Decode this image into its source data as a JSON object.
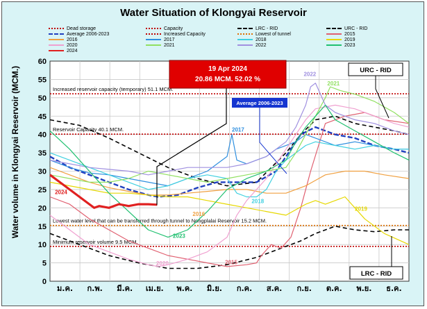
{
  "chart_data": {
    "type": "line",
    "title": "Water Situation of Klongyai Reservoir",
    "ylabel": "Water volume in Klongyai Reservoir (MCM.)",
    "xlabel": "",
    "ylim": [
      0,
      60
    ],
    "yticks": [
      0,
      5,
      10,
      15,
      20,
      25,
      30,
      35,
      40,
      45,
      50,
      55,
      60
    ],
    "xlim": [
      0,
      365
    ],
    "months": [
      "ม.ค.",
      "ก.พ.",
      "มี.ค.",
      "เม.ย.",
      "พ.ค.",
      "มิ.ย.",
      "ก.ค.",
      "ส.ค.",
      "ก.ย.",
      "ต.ค.",
      "พ.ย.",
      "ธ.ค."
    ],
    "grid": true,
    "legend_position": "top",
    "callout": {
      "line1": "19 Apr 2024",
      "line2": "20.86 MCM. 52.02 %"
    },
    "box_labels": {
      "urc": "URC - RID",
      "lrc": "LRC - RID"
    },
    "reference_lines": [
      {
        "name": "Increased reservoir capacity (temporary) 51.1 MCM.",
        "y": 51.1,
        "color": "#c00000"
      },
      {
        "name": "Reservoir Capacity 40.1 MCM.",
        "y": 40.1,
        "color": "#c00000"
      },
      {
        "name": "Lowest water level that can be transferred through tunnel to Nongplalai Reservoir 15.2 MCM.",
        "y": 15.2,
        "color": "#e07000"
      },
      {
        "name": "Minimum reservoir volume 9.5 MCM.",
        "y": 9.5,
        "color": "#c00000"
      }
    ],
    "legend": [
      {
        "label": "Dead storage",
        "color": "#c00000",
        "style": "dotted"
      },
      {
        "label": "Capacity",
        "color": "#c00000",
        "style": "dotted"
      },
      {
        "label": "LRC - RID",
        "color": "#000000",
        "style": "dashed"
      },
      {
        "label": "URC - RID",
        "color": "#000000",
        "style": "dashed"
      },
      {
        "label": "Average 2006-2023",
        "color": "#1f3fbf",
        "style": "dashed"
      },
      {
        "label": "Increased Capacity",
        "color": "#c00000",
        "style": "dotted"
      },
      {
        "label": "Lowest of tunnel",
        "color": "#e07000",
        "style": "dotted"
      },
      {
        "label": "2015",
        "color": "#e06070",
        "style": "solid"
      },
      {
        "label": "2016",
        "color": "#f0a040",
        "style": "solid"
      },
      {
        "label": "2017",
        "color": "#2f8fdf",
        "style": "solid"
      },
      {
        "label": "2018",
        "color": "#40d0e0",
        "style": "solid"
      },
      {
        "label": "2019",
        "color": "#e6d800",
        "style": "solid"
      },
      {
        "label": "2020",
        "color": "#f0a0d0",
        "style": "solid"
      },
      {
        "label": "2021",
        "color": "#90e060",
        "style": "solid"
      },
      {
        "label": "2022",
        "color": "#a090e0",
        "style": "solid"
      },
      {
        "label": "2023",
        "color": "#20c070",
        "style": "solid"
      },
      {
        "label": "2024",
        "color": "#e02020",
        "style": "solid"
      }
    ],
    "series_labels": [
      {
        "text": "2024",
        "x": 5,
        "y": 23.8,
        "color": "#e02020"
      },
      {
        "text": "2016",
        "x": 145,
        "y": 17.8,
        "color": "#f0a040"
      },
      {
        "text": "2017",
        "x": 185,
        "y": 40.8,
        "color": "#2f8fdf"
      },
      {
        "text": "2018",
        "x": 205,
        "y": 21.3,
        "color": "#40d0e0"
      },
      {
        "text": "2019",
        "x": 310,
        "y": 19.2,
        "color": "#e6d800"
      },
      {
        "text": "2020",
        "x": 108,
        "y": 4.4,
        "color": "#f0a0d0"
      },
      {
        "text": "2015",
        "x": 178,
        "y": 4.6,
        "color": "#e06070"
      },
      {
        "text": "2021",
        "x": 282,
        "y": 53.4,
        "color": "#90e060"
      },
      {
        "text": "2022",
        "x": 258,
        "y": 55.9,
        "color": "#a090e0"
      },
      {
        "text": "2023",
        "x": 125,
        "y": 11.8,
        "color": "#20c070"
      }
    ],
    "series": [
      {
        "name": "URC - RID",
        "color": "#000000",
        "dash": "6,4",
        "width": 1.6,
        "x": [
          0,
          30,
          60,
          90,
          120,
          150,
          180,
          210,
          240,
          255,
          270,
          290,
          310,
          330,
          350,
          365
        ],
        "y": [
          44,
          42.5,
          39,
          35,
          31,
          28,
          26,
          27,
          35,
          40,
          44,
          45,
          43,
          42,
          41,
          40
        ]
      },
      {
        "name": "LRC - RID",
        "color": "#000000",
        "dash": "6,4",
        "width": 1.6,
        "x": [
          0,
          30,
          60,
          90,
          120,
          150,
          180,
          210,
          240,
          255,
          270,
          290,
          310,
          330,
          350,
          365
        ],
        "y": [
          13,
          10,
          7,
          5,
          3.5,
          3.5,
          4.5,
          6.5,
          9.5,
          11,
          13,
          15,
          14,
          13.5,
          14,
          14
        ]
      },
      {
        "name": "Average 2006-2023",
        "color": "#1f3fbf",
        "dash": "7,3",
        "width": 2.4,
        "x": [
          0,
          20,
          40,
          60,
          80,
          100,
          110,
          130,
          150,
          170,
          190,
          210,
          230,
          240,
          255,
          270,
          290,
          310,
          330,
          350,
          365
        ],
        "y": [
          34,
          31,
          29,
          27,
          25,
          23.5,
          23,
          23.5,
          25.5,
          27,
          27,
          27,
          30,
          34,
          40,
          42,
          40,
          39,
          37,
          36,
          35
        ]
      },
      {
        "name": "2015",
        "color": "#e06070",
        "dash": "",
        "width": 1.2,
        "x": [
          0,
          20,
          40,
          60,
          80,
          100,
          120,
          140,
          160,
          180,
          200,
          210,
          215,
          225,
          235,
          245,
          255,
          265,
          280,
          300,
          320,
          340,
          365
        ],
        "y": [
          23,
          21,
          17,
          14,
          11,
          9,
          7,
          6,
          5,
          4,
          4.5,
          5,
          7,
          10,
          9,
          12,
          20,
          30,
          43,
          45,
          46,
          44,
          43
        ]
      },
      {
        "name": "2016",
        "color": "#f0a040",
        "dash": "",
        "width": 1.2,
        "x": [
          0,
          20,
          40,
          60,
          80,
          100,
          120,
          140,
          160,
          180,
          200,
          220,
          240,
          260,
          280,
          300,
          320,
          340,
          365
        ],
        "y": [
          31,
          29,
          27,
          25.5,
          24.5,
          23.5,
          23.5,
          24,
          24.5,
          25,
          25,
          24,
          24,
          26,
          29,
          30,
          30,
          29,
          28
        ]
      },
      {
        "name": "2017",
        "color": "#2f8fdf",
        "dash": "",
        "width": 1.2,
        "x": [
          0,
          20,
          40,
          60,
          80,
          100,
          120,
          140,
          160,
          170,
          180,
          185,
          190,
          200,
          210,
          220,
          230,
          250,
          260,
          270,
          290,
          310,
          330,
          350,
          365
        ],
        "y": [
          33,
          31,
          29.5,
          29,
          28,
          27,
          26,
          28,
          30,
          32,
          34,
          40,
          33,
          32,
          33,
          34,
          36,
          38,
          40,
          39,
          37,
          38,
          37,
          36,
          36
        ]
      },
      {
        "name": "2018",
        "color": "#40d0e0",
        "dash": "",
        "width": 1.2,
        "x": [
          0,
          20,
          40,
          60,
          80,
          100,
          120,
          140,
          160,
          180,
          190,
          200,
          210,
          220,
          230,
          240,
          250,
          260,
          270,
          290,
          310,
          330,
          350,
          365
        ],
        "y": [
          35,
          33,
          31,
          29,
          27,
          25,
          26,
          28,
          29,
          28,
          24,
          23,
          23,
          25,
          30,
          33,
          35,
          37,
          38,
          37,
          36,
          37,
          36,
          36
        ]
      },
      {
        "name": "2019",
        "color": "#e6d800",
        "dash": "",
        "width": 1.2,
        "x": [
          0,
          20,
          40,
          60,
          80,
          100,
          120,
          140,
          160,
          180,
          200,
          220,
          240,
          260,
          270,
          280,
          290,
          300,
          310,
          320,
          340,
          365
        ],
        "y": [
          27,
          26,
          25,
          24,
          24,
          23.5,
          23,
          23,
          22,
          21,
          20,
          19,
          18,
          21,
          22,
          21,
          22,
          23,
          20,
          17,
          13,
          10
        ]
      },
      {
        "name": "2020",
        "color": "#f0a0d0",
        "dash": "",
        "width": 1.2,
        "x": [
          0,
          20,
          40,
          60,
          80,
          100,
          110,
          120,
          140,
          160,
          180,
          190,
          200,
          220,
          230,
          240,
          250,
          260,
          270,
          290,
          310,
          330,
          350,
          365
        ],
        "y": [
          18,
          14,
          10,
          8,
          6,
          4.5,
          4,
          4.5,
          6,
          8,
          12,
          18,
          22,
          28,
          32,
          36,
          40,
          44,
          47,
          48,
          47,
          45,
          43,
          42
        ]
      },
      {
        "name": "2021",
        "color": "#90e060",
        "dash": "",
        "width": 1.2,
        "x": [
          0,
          20,
          40,
          60,
          80,
          100,
          120,
          140,
          160,
          180,
          200,
          220,
          240,
          250,
          260,
          270,
          280,
          285,
          295,
          310,
          330,
          350,
          365
        ],
        "y": [
          29,
          28,
          27,
          27,
          28,
          30,
          29,
          28,
          27,
          28,
          29,
          30,
          31,
          35,
          40,
          45,
          50,
          53,
          52,
          51,
          49,
          46,
          43
        ]
      },
      {
        "name": "2022",
        "color": "#a090e0",
        "dash": "",
        "width": 1.2,
        "x": [
          0,
          20,
          40,
          60,
          80,
          100,
          120,
          140,
          160,
          180,
          200,
          220,
          240,
          250,
          260,
          265,
          270,
          280,
          290,
          310,
          330,
          350,
          365
        ],
        "y": [
          33,
          32,
          31,
          30.5,
          30,
          29,
          30,
          31,
          31,
          31,
          32,
          34,
          38,
          42,
          48,
          53,
          54,
          48,
          46,
          44,
          43,
          41,
          40
        ]
      },
      {
        "name": "2023",
        "color": "#20c070",
        "dash": "",
        "width": 1.2,
        "x": [
          0,
          20,
          40,
          60,
          80,
          100,
          120,
          140,
          160,
          180,
          200,
          220,
          240,
          250,
          260,
          270,
          280,
          290,
          310,
          330,
          350,
          365
        ],
        "y": [
          41,
          36,
          30,
          24,
          19,
          14,
          12,
          14,
          19,
          25,
          28,
          30,
          33,
          38,
          42,
          45,
          48,
          44,
          41,
          38,
          35,
          33
        ]
      },
      {
        "name": "2024",
        "color": "#e02020",
        "dash": "",
        "width": 3.2,
        "x": [
          0,
          10,
          20,
          30,
          40,
          45,
          50,
          60,
          70,
          80,
          90,
          100,
          109
        ],
        "y": [
          29,
          27,
          25,
          23,
          21,
          20,
          20.5,
          20,
          21,
          20.5,
          21,
          21,
          20.86
        ]
      }
    ]
  }
}
